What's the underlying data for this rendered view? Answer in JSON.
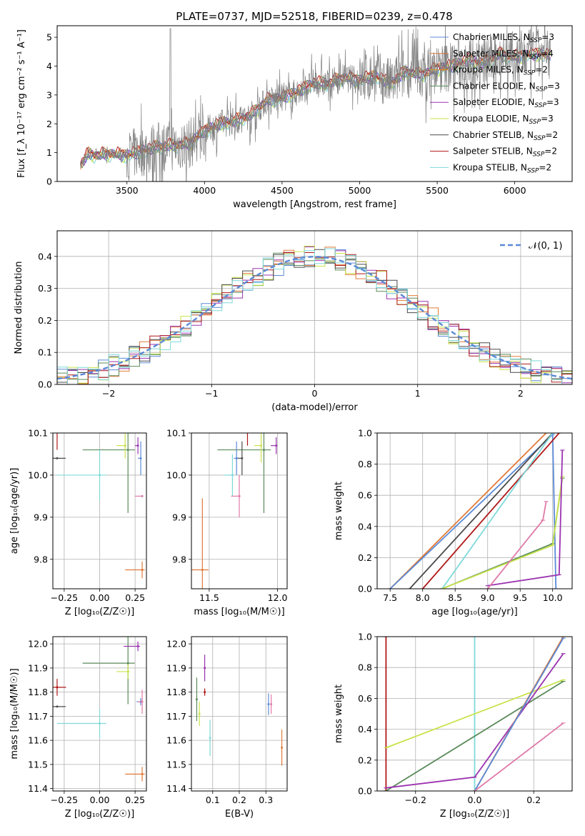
{
  "colors": {
    "chabrier_miles": "#5b8ad6",
    "salpeter_miles": "#e07b39",
    "kroupa_miles": "#e38a1e",
    "chabrier_elodie": "#5a8a5a",
    "salpeter_elodie": "#9b33b0",
    "kroupa_elodie": "#c8e34a",
    "chabrier_stelib": "#4a4a4a",
    "salpeter_stelib": "#b01818",
    "kroupa_stelib": "#7fd9d9",
    "pink": "#e07aa8",
    "grey_data": "#808080"
  },
  "chart_data": [
    {
      "id": "spectrum",
      "type": "line",
      "title": "PLATE=0737, MJD=52518, FIBERID=0239, z=0.478",
      "xlabel": "wavelength [Angstrom, rest frame]",
      "ylabel": "Flux [f_λ 10⁻¹⁷ erg cm⁻² s⁻¹ A⁻¹]",
      "xlim": [
        3050,
        6370
      ],
      "ylim": [
        0,
        5.4
      ],
      "xticks": [
        "3500",
        "4000",
        "4500",
        "5000",
        "5500",
        "6000"
      ],
      "yticks": [
        "0",
        "1",
        "2",
        "3",
        "4",
        "5"
      ],
      "legend_position": "top-right",
      "legend": [
        "Chabrier MILES, N_SSP=3",
        "Salpeter MILES, N_SSP=4",
        "Kroupa MILES, N_SSP=2",
        "Chabrier ELODIE, N_SSP=3",
        "Salpeter ELODIE, N_SSP=3",
        "Kroupa ELODIE, N_SSP=3",
        "Chabrier STELIB, N_SSP=2",
        "Salpeter STELIB, N_SSP=2",
        "Kroupa STELIB, N_SSP=2"
      ],
      "model_continuum": {
        "x": [
          3200,
          3250,
          3300,
          3400,
          3500,
          3600,
          3700,
          3800,
          3900,
          4000,
          4100,
          4200,
          4300,
          4400,
          4500,
          4600,
          4700,
          4800,
          4900,
          5000,
          5100,
          5200,
          5300,
          5400,
          5500,
          5600,
          5700,
          5800,
          5900,
          6000,
          6100,
          6200
        ],
        "y": [
          0.55,
          0.95,
          0.9,
          0.95,
          0.9,
          1.05,
          1.2,
          1.25,
          1.3,
          1.75,
          2.0,
          2.1,
          2.3,
          2.8,
          2.9,
          3.1,
          3.4,
          3.4,
          3.6,
          3.5,
          3.65,
          3.4,
          3.8,
          3.7,
          3.9,
          4.0,
          4.2,
          4.1,
          4.4,
          4.3,
          4.4,
          4.4
        ]
      }
    },
    {
      "id": "residuals",
      "type": "histogram",
      "xlabel": "(data-model)/error",
      "ylabel": "Normed distribution",
      "xlim": [
        -2.5,
        2.5
      ],
      "ylim": [
        0,
        0.48
      ],
      "xticks": [
        "−2",
        "−1",
        "0",
        "1",
        "2"
      ],
      "yticks": [
        "0.0",
        "0.1",
        "0.2",
        "0.3",
        "0.4"
      ],
      "legend": [
        "𝒩(0, 1)"
      ],
      "reference_curve": "N(0,1)",
      "bin_width": 0.1
    },
    {
      "id": "age_vs_Z",
      "type": "scatter",
      "xlabel": "Z [log₁₀(Z/Z☉)]",
      "ylabel": "age  [log₁₀(age/yr)]",
      "xlim": [
        -0.33,
        0.33
      ],
      "ylim": [
        9.73,
        10.1
      ],
      "xticks": [
        "−0.25",
        "0.00",
        "0.25"
      ],
      "yticks": [
        "9.8",
        "9.9",
        "10.0",
        "10.1"
      ],
      "points": [
        {
          "c": "chabrier_miles",
          "x": 0.29,
          "y": 10.04,
          "ex": 0.02,
          "ey": 0.08
        },
        {
          "c": "salpeter_miles",
          "x": 0.3,
          "y": 9.775,
          "ex": 0.12,
          "ey": 0.04
        },
        {
          "c": "chabrier_elodie",
          "x": 0.2,
          "y": 10.06,
          "ex": 0.32,
          "ey": 0.3
        },
        {
          "c": "salpeter_elodie",
          "x": 0.27,
          "y": 10.07,
          "ex": 0.02,
          "ey": 0.04
        },
        {
          "c": "kroupa_elodie",
          "x": 0.18,
          "y": 10.07,
          "ex": 0.06,
          "ey": 0.06
        },
        {
          "c": "chabrier_stelib",
          "x": -0.3,
          "y": 10.04,
          "ex": 0.4,
          "ey": 0.0
        },
        {
          "c": "salpeter_stelib",
          "x": -0.3,
          "y": 10.11,
          "ex": 0.42,
          "ey": 0.1
        },
        {
          "c": "kroupa_stelib",
          "x": 0.0,
          "y": 10.0,
          "ex": 0.3,
          "ey": 0.12
        },
        {
          "c": "pink",
          "x": 0.3,
          "y": 9.95,
          "ex": 0.05,
          "ey": 0.0
        }
      ]
    },
    {
      "id": "age_vs_mass",
      "type": "scatter",
      "xlabel": "mass [log₁₀(M/M☉)]",
      "ylabel": "",
      "xlim": [
        11.37,
        12.07
      ],
      "ylim": [
        9.73,
        10.1
      ],
      "xticks": [
        "11.5",
        "12.0"
      ],
      "yticks": [
        "9.8",
        "9.9",
        "10.0",
        "10.1"
      ],
      "points": [
        {
          "c": "salpeter_miles",
          "x": 11.45,
          "y": 9.775,
          "ex": 0.3,
          "ey": 0.34
        },
        {
          "c": "chabrier_elodie",
          "x": 11.9,
          "y": 10.06,
          "ex": 0.34,
          "ey": 0.3
        },
        {
          "c": "salpeter_elodie",
          "x": 11.99,
          "y": 10.07,
          "ex": 0.04,
          "ey": 0.04
        },
        {
          "c": "kroupa_elodie",
          "x": 11.88,
          "y": 10.07,
          "ex": 0.05,
          "ey": 0.08
        },
        {
          "c": "chabrier_stelib",
          "x": 11.74,
          "y": 10.04,
          "ex": 0.04,
          "ey": 0.08
        },
        {
          "c": "salpeter_stelib",
          "x": 11.78,
          "y": 10.11,
          "ex": 0.02,
          "ey": 0.08
        },
        {
          "c": "kroupa_stelib",
          "x": 11.67,
          "y": 10.0,
          "ex": 0.06,
          "ey": 0.1
        },
        {
          "c": "chabrier_miles",
          "x": 11.7,
          "y": 10.04,
          "ex": 0.02,
          "ey": 0.08
        },
        {
          "c": "pink",
          "x": 11.72,
          "y": 9.95,
          "ex": 0.06,
          "ey": 0.1
        }
      ]
    },
    {
      "id": "mass_weight_vs_age",
      "type": "line",
      "xlabel": "age  [log₁₀(age/yr)]",
      "ylabel": "mass weight",
      "xlim": [
        7.3,
        10.3
      ],
      "ylim": [
        0,
        1
      ],
      "xticks": [
        "7.5",
        "8.0",
        "8.5",
        "9.0",
        "9.5",
        "10.0"
      ],
      "yticks": [
        "0.0",
        "0.2",
        "0.4",
        "0.6",
        "0.8",
        "1.0"
      ],
      "series": [
        {
          "c": "salpeter_miles",
          "x": [
            7.5,
            9.9
          ],
          "y": [
            0.0,
            1.0
          ]
        },
        {
          "c": "chabrier_miles",
          "x": [
            7.5,
            10.0,
            10.05
          ],
          "y": [
            0.0,
            0.99,
            0.0
          ]
        },
        {
          "c": "chabrier_stelib",
          "x": [
            7.8,
            10.0
          ],
          "y": [
            0.0,
            1.0
          ]
        },
        {
          "c": "salpeter_stelib",
          "x": [
            8.0,
            10.1
          ],
          "y": [
            0.0,
            1.0
          ]
        },
        {
          "c": "kroupa_stelib",
          "x": [
            8.3,
            10.0
          ],
          "y": [
            0.0,
            1.0
          ]
        },
        {
          "c": "chabrier_elodie",
          "x": [
            8.3,
            10.0,
            10.15
          ],
          "y": [
            0.0,
            0.29,
            0.71
          ]
        },
        {
          "c": "kroupa_elodie",
          "x": [
            8.3,
            10.0,
            10.15
          ],
          "y": [
            0.0,
            0.28,
            0.72
          ]
        },
        {
          "c": "salpeter_elodie",
          "x": [
            9.0,
            10.1,
            10.15
          ],
          "y": [
            0.02,
            0.09,
            0.89
          ]
        },
        {
          "c": "pink",
          "x": [
            9.0,
            9.85,
            9.9
          ],
          "y": [
            0.0,
            0.44,
            0.56
          ]
        }
      ]
    },
    {
      "id": "mass_vs_Z",
      "type": "scatter",
      "xlabel": "Z [log₁₀(Z/Z☉)]",
      "ylabel": "mass [log₁₀(M/M☉)]",
      "xlim": [
        -0.33,
        0.33
      ],
      "ylim": [
        11.39,
        12.03
      ],
      "xticks": [
        "−0.25",
        "0.00",
        "0.25"
      ],
      "yticks": [
        "11.4",
        "11.5",
        "11.6",
        "11.7",
        "11.8",
        "11.9",
        "12.0"
      ],
      "points": [
        {
          "c": "salpeter_miles",
          "x": 0.3,
          "y": 11.46,
          "ex": 0.12,
          "ey": 0.06
        },
        {
          "c": "chabrier_elodie",
          "x": 0.2,
          "y": 11.92,
          "ex": 0.32,
          "ey": 0.34
        },
        {
          "c": "salpeter_elodie",
          "x": 0.27,
          "y": 11.99,
          "ex": 0.1,
          "ey": 0.04
        },
        {
          "c": "kroupa_elodie",
          "x": 0.2,
          "y": 11.885,
          "ex": 0.08,
          "ey": 0.06
        },
        {
          "c": "chabrier_stelib",
          "x": -0.3,
          "y": 11.74,
          "ex": 0.4,
          "ey": 0.0
        },
        {
          "c": "salpeter_stelib",
          "x": -0.3,
          "y": 11.82,
          "ex": 0.42,
          "ey": 0.07
        },
        {
          "c": "kroupa_stelib",
          "x": 0.0,
          "y": 11.67,
          "ex": 0.3,
          "ey": 0.12
        },
        {
          "c": "chabrier_miles",
          "x": 0.29,
          "y": 11.76,
          "ex": 0.03,
          "ey": 0.03
        },
        {
          "c": "pink",
          "x": 0.3,
          "y": 11.76,
          "ex": 0.03,
          "ey": 0.1
        }
      ]
    },
    {
      "id": "mass_vs_ebv",
      "type": "scatter",
      "xlabel": "E(B-V)",
      "ylabel": "",
      "xlim": [
        0.02,
        0.38
      ],
      "ylim": [
        11.39,
        12.03
      ],
      "xticks": [
        "0.1",
        "0.2",
        "0.3"
      ],
      "yticks": [
        "11.4",
        "11.5",
        "11.6",
        "11.7",
        "11.8",
        "11.9",
        "12.0"
      ],
      "points": [
        {
          "c": "chabrier_elodie",
          "x": 0.04,
          "y": 11.77,
          "ex": 0.0,
          "ey": 0.18
        },
        {
          "c": "salpeter_elodie",
          "x": 0.07,
          "y": 11.9,
          "ex": 0.0,
          "ey": 0.11
        },
        {
          "c": "kroupa_elodie",
          "x": 0.05,
          "y": 11.71,
          "ex": 0.0,
          "ey": 0.1
        },
        {
          "c": "salpeter_stelib",
          "x": 0.07,
          "y": 11.8,
          "ex": 0.0,
          "ey": 0.03
        },
        {
          "c": "kroupa_stelib",
          "x": 0.09,
          "y": 11.61,
          "ex": 0.0,
          "ey": 0.15
        },
        {
          "c": "chabrier_miles",
          "x": 0.31,
          "y": 11.75,
          "ex": 0.0,
          "ey": 0.09
        },
        {
          "c": "pink",
          "x": 0.32,
          "y": 11.75,
          "ex": 0.0,
          "ey": 0.08
        },
        {
          "c": "salpeter_miles",
          "x": 0.36,
          "y": 11.57,
          "ex": 0.0,
          "ey": 0.15
        }
      ]
    },
    {
      "id": "mass_weight_vs_Z",
      "type": "line",
      "xlabel": "Z [log₁₀(Z/Z☉)]",
      "ylabel": "mass weight",
      "xlim": [
        -0.33,
        0.33
      ],
      "ylim": [
        0,
        1
      ],
      "xticks": [
        "−0.2",
        "0.0",
        "0.2"
      ],
      "yticks": [
        "0.0",
        "0.2",
        "0.4",
        "0.6",
        "0.8",
        "1.0"
      ],
      "series": [
        {
          "c": "salpeter_stelib",
          "x": [
            -0.3,
            -0.3
          ],
          "y": [
            0.0,
            1.0
          ]
        },
        {
          "c": "kroupa_stelib",
          "x": [
            0.0,
            0.0
          ],
          "y": [
            0.0,
            1.0
          ]
        },
        {
          "c": "kroupa_elodie",
          "x": [
            -0.3,
            0.3
          ],
          "y": [
            0.28,
            0.72
          ]
        },
        {
          "c": "chabrier_elodie",
          "x": [
            -0.3,
            0.3
          ],
          "y": [
            0.0,
            0.71
          ]
        },
        {
          "c": "salpeter_elodie",
          "x": [
            -0.3,
            0.0,
            0.3
          ],
          "y": [
            0.02,
            0.09,
            0.89
          ]
        },
        {
          "c": "salpeter_miles",
          "x": [
            0.0,
            0.3
          ],
          "y": [
            0.0,
            1.0
          ]
        },
        {
          "c": "chabrier_miles",
          "x": [
            0.0,
            0.3
          ],
          "y": [
            0.0,
            0.99
          ]
        },
        {
          "c": "pink",
          "x": [
            0.0,
            0.3
          ],
          "y": [
            0.0,
            0.44
          ]
        }
      ]
    }
  ]
}
